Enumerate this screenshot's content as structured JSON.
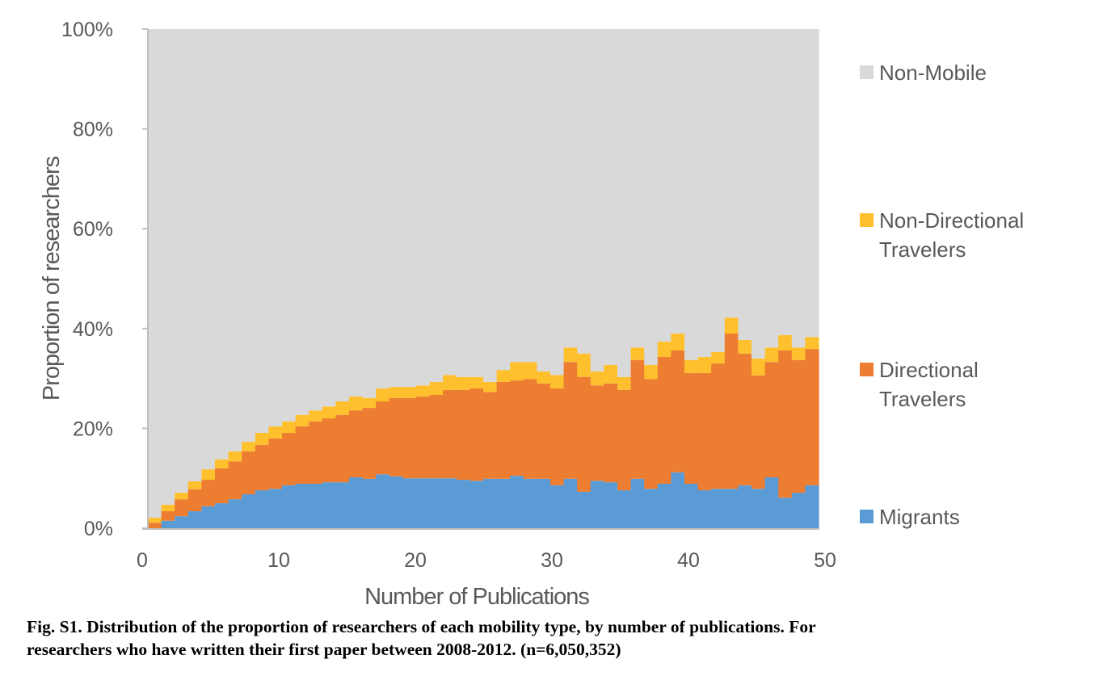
{
  "chart_data": {
    "type": "bar",
    "stacked": true,
    "normalized_percent": true,
    "title": "",
    "xlabel": "Number of Publications",
    "ylabel": "Proportion of researchers",
    "xlim": [
      0,
      50
    ],
    "ylim": [
      0,
      100
    ],
    "x_ticks": [
      "0",
      "10",
      "20",
      "30",
      "40",
      "50"
    ],
    "y_ticks": [
      "0%",
      "20%",
      "40%",
      "60%",
      "80%",
      "100%"
    ],
    "grid": false,
    "legend_position": "right",
    "categories": [
      1,
      2,
      3,
      4,
      5,
      6,
      7,
      8,
      9,
      10,
      11,
      12,
      13,
      14,
      15,
      16,
      17,
      18,
      19,
      20,
      21,
      22,
      23,
      24,
      25,
      26,
      27,
      28,
      29,
      30,
      31,
      32,
      33,
      34,
      35,
      36,
      37,
      38,
      39,
      40,
      41,
      42,
      43,
      44,
      45,
      46,
      47,
      48,
      49,
      50
    ],
    "series": [
      {
        "name": "Migrants",
        "color": "#5b9bd5",
        "values": [
          0.0,
          1.5,
          2.4,
          3.4,
          4.4,
          5.0,
          5.8,
          6.8,
          7.6,
          7.9,
          8.6,
          8.9,
          8.9,
          9.2,
          9.2,
          10.2,
          9.9,
          10.8,
          10.4,
          10.0,
          10.0,
          10.0,
          10.0,
          9.7,
          9.5,
          9.9,
          9.9,
          10.5,
          9.9,
          9.9,
          8.6,
          9.9,
          7.3,
          9.5,
          9.2,
          7.6,
          9.9,
          7.9,
          8.9,
          11.2,
          8.9,
          7.6,
          7.9,
          7.9,
          8.6,
          7.9,
          10.2,
          6.1,
          7.1,
          8.6
        ]
      },
      {
        "name": "Directional Travelers",
        "color": "#ed7d31",
        "values": [
          1.1,
          1.9,
          3.4,
          4.4,
          5.3,
          7.0,
          7.6,
          8.6,
          9.1,
          10.1,
          10.5,
          11.5,
          12.5,
          12.8,
          13.5,
          13.4,
          14.2,
          14.6,
          15.7,
          16.1,
          16.4,
          16.7,
          17.7,
          18.0,
          18.5,
          17.4,
          19.4,
          19.1,
          20.0,
          19.1,
          19.4,
          23.4,
          23.0,
          19.1,
          19.8,
          20.1,
          23.8,
          22.0,
          25.4,
          24.4,
          22.2,
          23.5,
          25.1,
          31.1,
          26.4,
          22.7,
          23.1,
          29.5,
          26.6,
          27.3
        ]
      },
      {
        "name": "Non-Directional Travelers",
        "color": "#ffc02e",
        "values": [
          1.0,
          1.3,
          1.3,
          1.6,
          2.1,
          1.8,
          2.0,
          1.9,
          2.4,
          2.4,
          2.3,
          2.3,
          2.2,
          2.4,
          2.7,
          2.8,
          2.0,
          2.6,
          2.2,
          2.2,
          2.2,
          2.6,
          3.0,
          2.6,
          2.3,
          2.0,
          2.4,
          3.7,
          3.4,
          2.4,
          2.7,
          2.9,
          4.7,
          2.8,
          3.7,
          2.6,
          2.5,
          2.8,
          3.1,
          3.4,
          2.6,
          3.2,
          2.3,
          3.2,
          2.7,
          3.4,
          2.9,
          3.1,
          2.5,
          2.4
        ]
      },
      {
        "name": "Non-Mobile",
        "color": "#d9d9d9",
        "values": [
          97.9,
          95.3,
          92.9,
          90.6,
          88.2,
          86.2,
          84.6,
          82.7,
          80.9,
          79.6,
          78.6,
          77.3,
          76.4,
          75.6,
          74.6,
          73.6,
          73.9,
          72.0,
          71.7,
          71.7,
          71.4,
          70.7,
          69.3,
          69.7,
          69.7,
          70.7,
          68.3,
          66.7,
          66.7,
          68.6,
          69.3,
          63.8,
          65.0,
          68.6,
          67.3,
          69.7,
          63.8,
          67.3,
          62.6,
          61.0,
          66.3,
          65.7,
          64.7,
          57.8,
          62.3,
          66.0,
          63.8,
          61.3,
          63.8,
          61.7
        ]
      }
    ],
    "legend": [
      {
        "label_lines": [
          "Non-Mobile"
        ],
        "color": "#d9d9d9"
      },
      {
        "label_lines": [
          "Non-Directional",
          "Travelers"
        ],
        "color": "#ffc02e"
      },
      {
        "label_lines": [
          "Directional",
          "Travelers"
        ],
        "color": "#ed7d31"
      },
      {
        "label_lines": [
          "Migrants"
        ],
        "color": "#5b9bd5"
      }
    ]
  },
  "caption": {
    "line1": "Fig. S1. Distribution of the proportion of researchers of each mobility type, by number of publications. For",
    "line2": "researchers who have written their first paper between 2008-2012. (n=6,050,352)"
  },
  "colors": {
    "axis": "#bfbfbf",
    "text": "#595959"
  }
}
